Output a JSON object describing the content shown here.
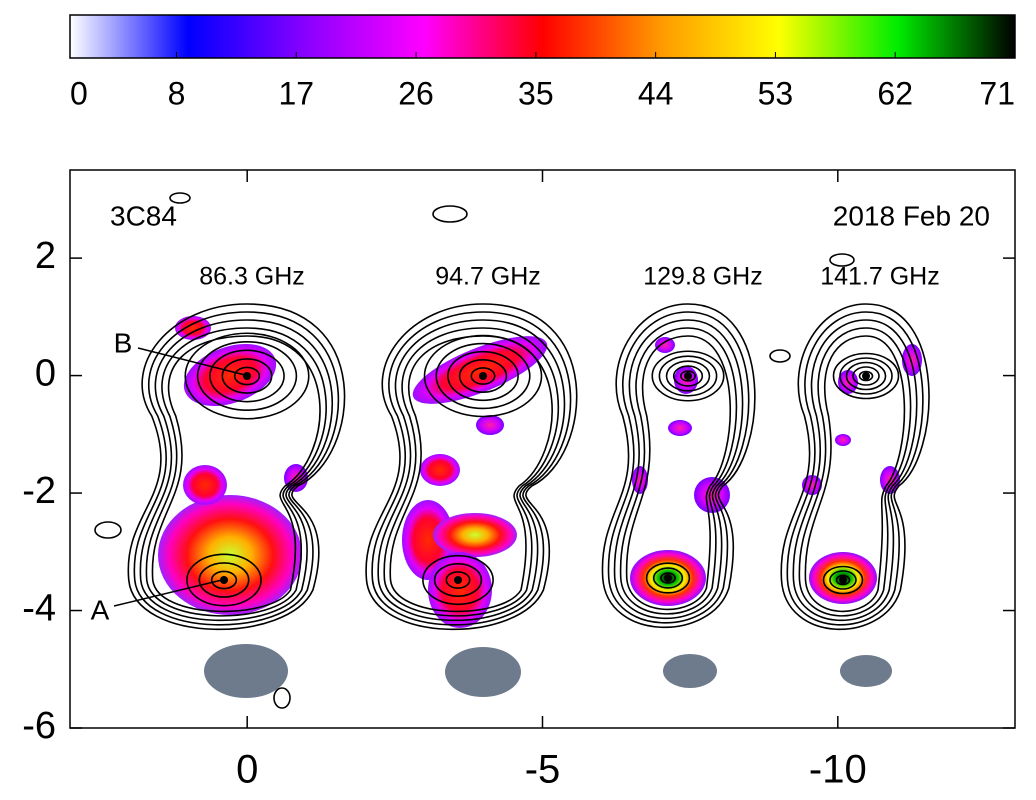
{
  "chart_data": {
    "type": "map",
    "colorbar": {
      "lim": [
        0,
        71
      ],
      "ticks": [
        0,
        8,
        17,
        26,
        35,
        44,
        53,
        62,
        71
      ],
      "colors": [
        "#ffffff",
        "#0000ff",
        "#8a00ff",
        "#ff00ff",
        "#ff0000",
        "#ff9900",
        "#ffff00",
        "#00ee00",
        "#000000"
      ]
    },
    "xlim": [
      3,
      -13
    ],
    "xticks": [
      0,
      -5,
      -10
    ],
    "ylim": [
      -6,
      3.5
    ],
    "yticks": [
      2,
      0,
      -2,
      -4,
      -6
    ],
    "source": "3C84",
    "date": "2018 Feb 20",
    "frequencies": [
      "86.3 GHz",
      "94.7 GHz",
      "129.8 GHz",
      "141.7 GHz"
    ],
    "components": [
      "A",
      "B"
    ]
  }
}
